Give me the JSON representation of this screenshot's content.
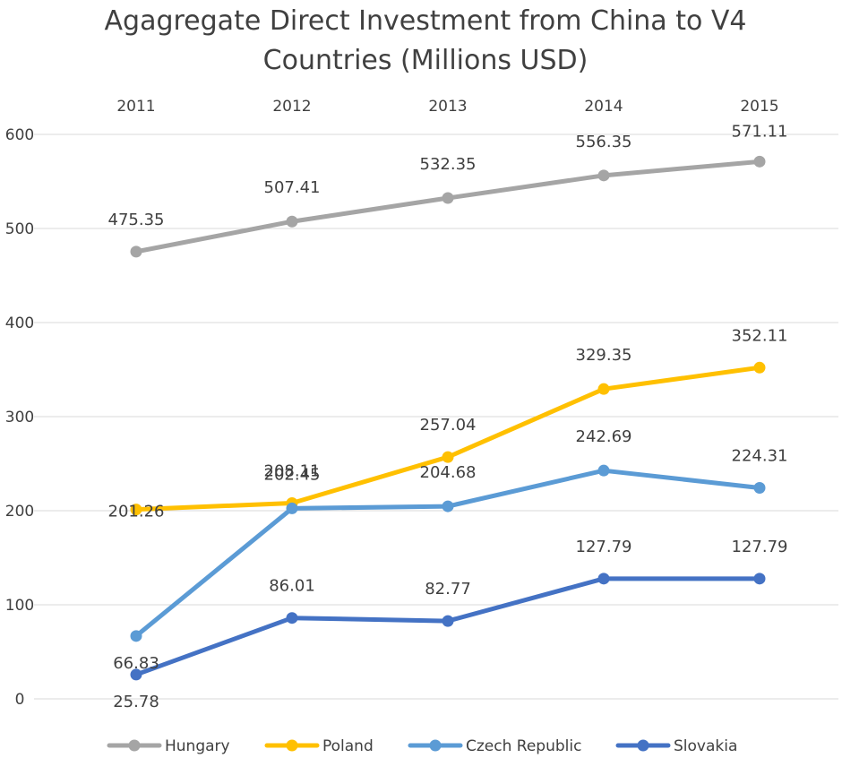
{
  "chart_data": {
    "type": "line",
    "title": "Agagregate Direct Investment from China to V4 Countries (Millions USD)",
    "title_lines": [
      "Agagregate Direct Investment from China to V4",
      "Countries (Millions USD)"
    ],
    "categories": [
      "2011",
      "2012",
      "2013",
      "2014",
      "2015"
    ],
    "xlabel": "",
    "ylabel": "",
    "ylim": [
      0,
      600
    ],
    "yticks": [
      0,
      100,
      200,
      300,
      400,
      500,
      600
    ],
    "grid": true,
    "x_axis_position": "top",
    "legend_position": "bottom",
    "series": [
      {
        "name": "Hungary",
        "color": "#a5a5a5",
        "values": [
          475.35,
          507.41,
          532.35,
          556.35,
          571.11
        ],
        "labels": [
          "475.35",
          "507.41",
          "532.35",
          "556.35",
          "571.11"
        ]
      },
      {
        "name": "Poland",
        "color": "#ffc000",
        "values": [
          201.26,
          208.11,
          257.04,
          329.35,
          352.11
        ],
        "labels": [
          "201.26",
          "208.11",
          "257.04",
          "329.35",
          "352.11"
        ]
      },
      {
        "name": "Czech Republic",
        "color": "#5b9bd5",
        "values": [
          66.83,
          202.45,
          204.68,
          242.69,
          224.31
        ],
        "labels": [
          "66.83",
          "202.45",
          "204.68",
          "242.69",
          "224.31"
        ]
      },
      {
        "name": "Slovakia",
        "color": "#4472c4",
        "values": [
          25.78,
          86.01,
          82.77,
          127.79,
          127.79
        ],
        "labels": [
          "25.78",
          "86.01",
          "82.77",
          "127.79",
          "127.79"
        ]
      }
    ]
  }
}
